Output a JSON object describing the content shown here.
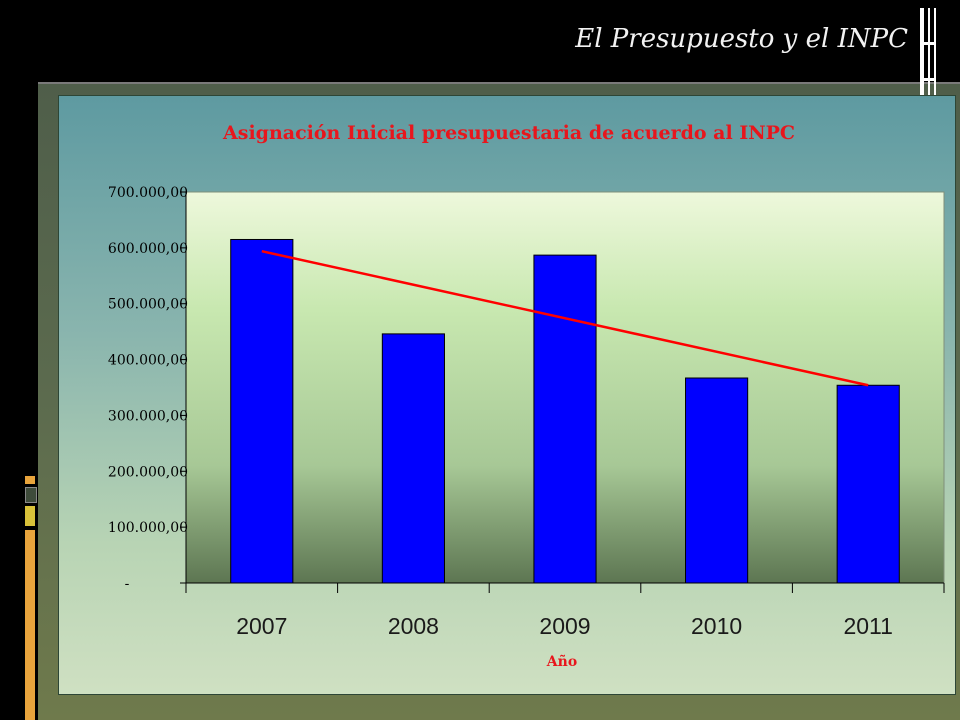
{
  "slide": {
    "title": "El Presupuesto y el INPC"
  },
  "colors": {
    "bar": "#0000ff",
    "trend": "#ff0000",
    "title_text": "#e8161c",
    "axis_title_text": "#e8161c",
    "deco_orange": "#e8a43c",
    "deco_yellow": "#d9c23a",
    "deco_dark": "#3e4b3a"
  },
  "chart_data": {
    "type": "bar",
    "title": "Asignación Inicial presupuestaria de acuerdo al INPC",
    "xlabel": "Año",
    "ylabel": "",
    "categories": [
      "2007",
      "2008",
      "2009",
      "2010",
      "2011"
    ],
    "series": [
      {
        "values": [
          615000,
          446000,
          587000,
          367000,
          354000
        ]
      }
    ],
    "trendline": {
      "type": "linear",
      "start": 594000,
      "end": 354000
    },
    "ylim": [
      0,
      700000
    ],
    "yticks": [
      0,
      100000,
      200000,
      300000,
      400000,
      500000,
      600000,
      700000
    ],
    "ytick_labels": [
      "-",
      "100.000,00",
      "200.000,00",
      "300.000,00",
      "400.000,00",
      "500.000,00",
      "600.000,00",
      "700.000,00"
    ],
    "grid": false,
    "legend": "none"
  }
}
